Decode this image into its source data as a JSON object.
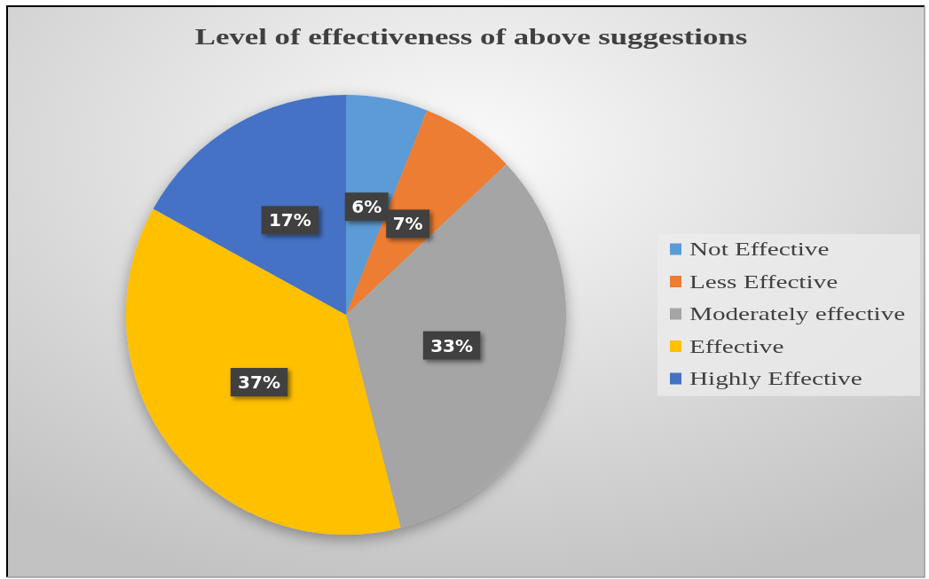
{
  "chart_data": {
    "type": "pie",
    "title": "Level of effectiveness of above suggestions",
    "categories": [
      "Not Effective",
      "Less Effective",
      "Moderately effective",
      "Effective",
      "Highly Effective"
    ],
    "values": [
      6,
      7,
      33,
      37,
      17
    ],
    "colors": [
      "#5b9bd5",
      "#ed7d31",
      "#a5a5a5",
      "#ffc000",
      "#4472c4"
    ],
    "value_labels": [
      "6%",
      "7%",
      "33%",
      "37%",
      "17%"
    ],
    "legend": "right"
  }
}
